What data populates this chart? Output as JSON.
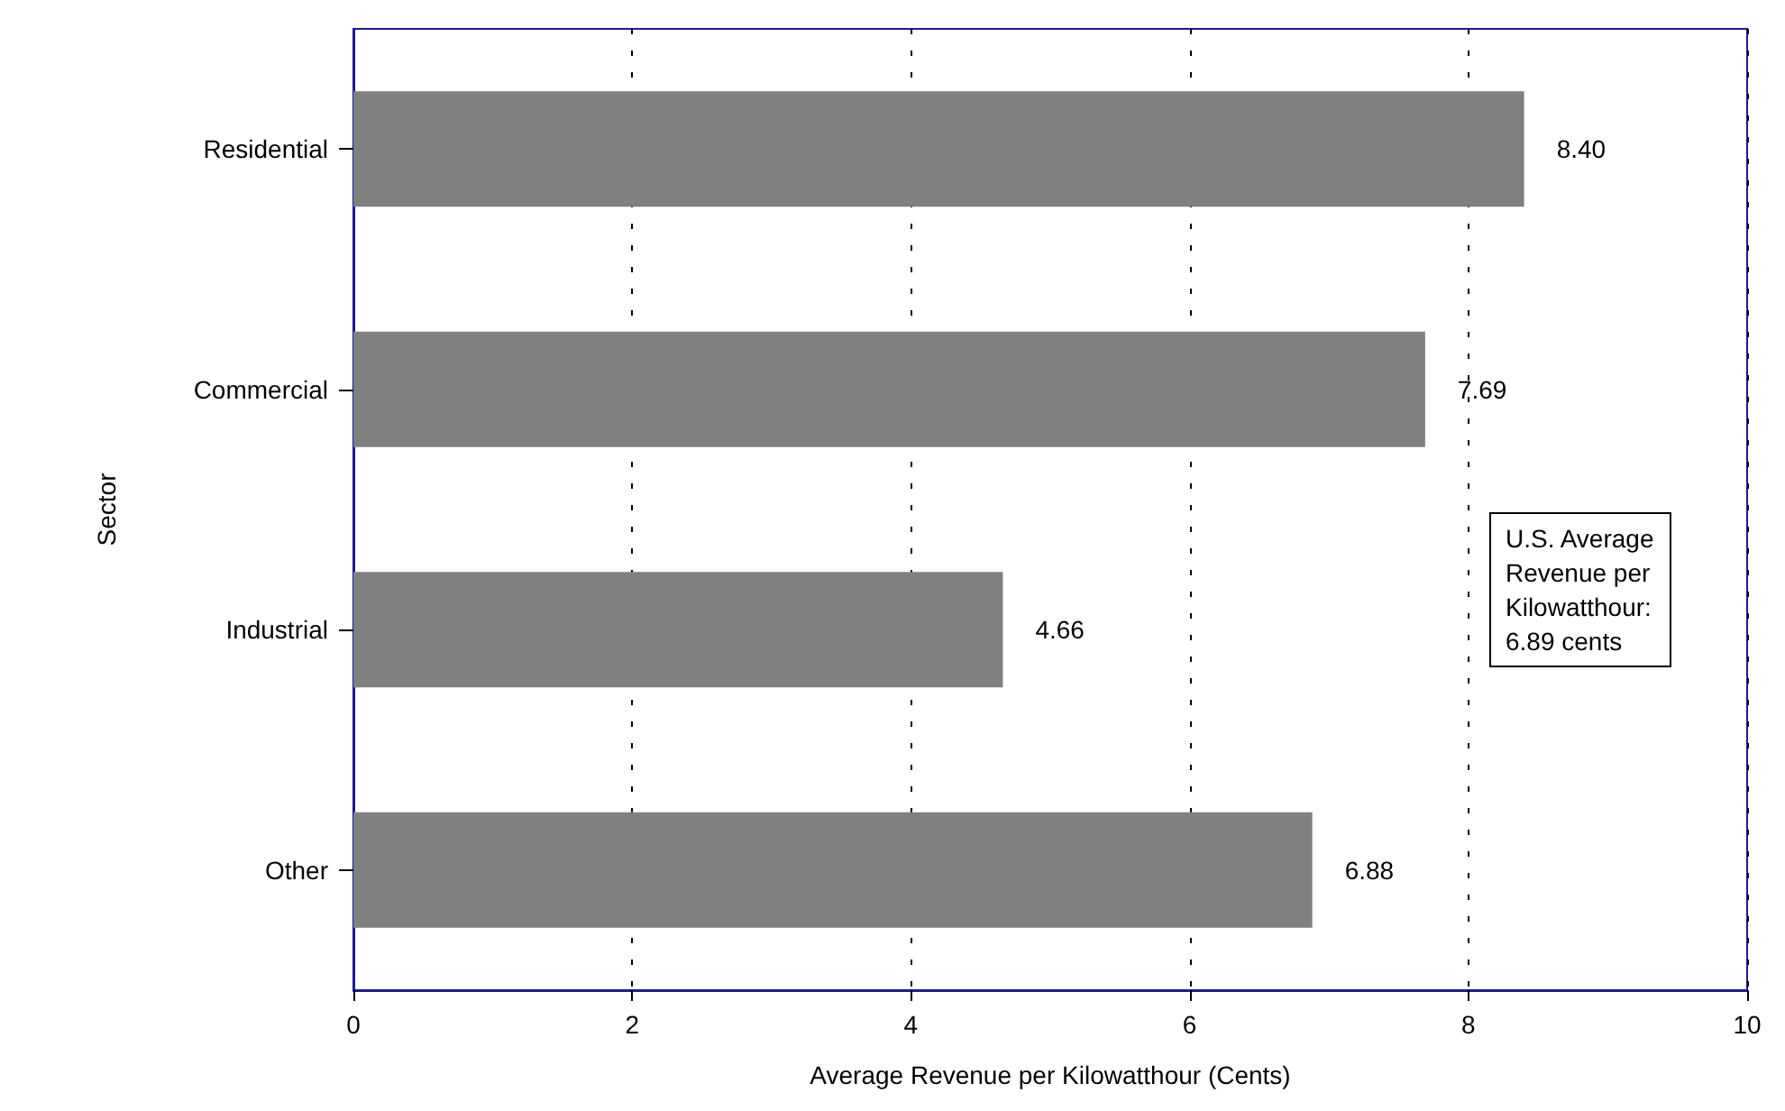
{
  "chart_data": {
    "type": "bar",
    "orientation": "horizontal",
    "xlabel": "Average Revenue per Kilowatthour (Cents)",
    "ylabel": "Sector",
    "categories": [
      "Residential",
      "Commercial",
      "Industrial",
      "Other"
    ],
    "values": [
      8.4,
      7.69,
      4.66,
      6.88
    ],
    "value_labels": [
      "8.40",
      "7.69",
      "4.66",
      "6.88"
    ],
    "color": "#808080",
    "xlim": [
      0,
      10
    ],
    "xticks": [
      0,
      2,
      4,
      6,
      8,
      10
    ],
    "grid": "x",
    "annotations": [
      "U.S. Average\nRevenue per\nKilowatthour:\n6.89 cents"
    ]
  }
}
